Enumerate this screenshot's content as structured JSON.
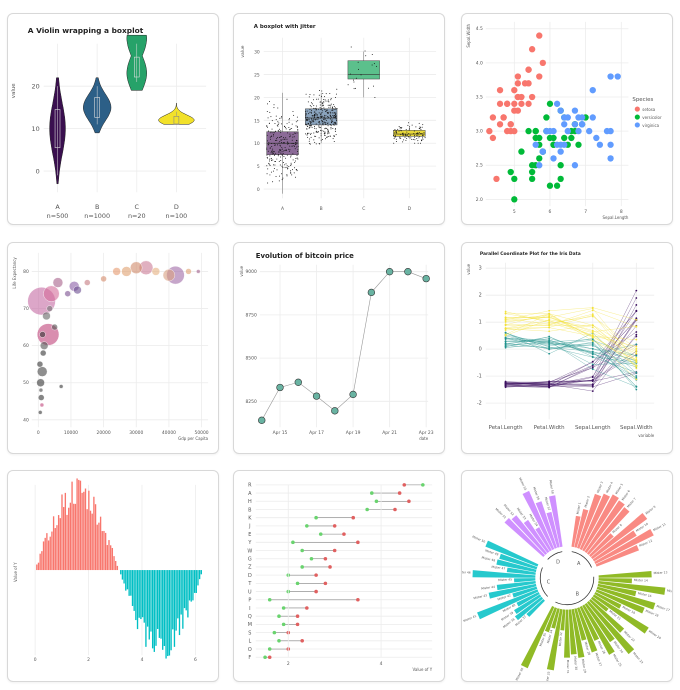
{
  "chart_data": [
    {
      "type": "violin",
      "title": "A Violin wrapping a boxplot",
      "ylabel": "value",
      "ylim": [
        -5,
        30
      ],
      "yticks": [
        0,
        10,
        20
      ],
      "categories": [
        "A",
        "B",
        "C",
        "D"
      ],
      "counts": [
        "n=500",
        "n=1000",
        "n=20",
        "n=100"
      ],
      "medians": [
        10,
        15,
        24.5,
        12
      ],
      "ranges": [
        [
          -3,
          22
        ],
        [
          9,
          22
        ],
        [
          19,
          32
        ],
        [
          11,
          16
        ]
      ],
      "colors": [
        "#3a0f4f",
        "#2c5f87",
        "#26a269",
        "#f2e12a"
      ]
    },
    {
      "type": "box",
      "title": "A boxplot with jitter",
      "ylabel": "value",
      "ylim": [
        -2,
        33
      ],
      "yticks": [
        0,
        5,
        10,
        15,
        20,
        25,
        30
      ],
      "categories": [
        "A",
        "B",
        "C",
        "D"
      ],
      "boxes": [
        {
          "q1": 7.5,
          "median": 10,
          "q3": 12.5,
          "lo": -1,
          "hi": 21
        },
        {
          "q1": 14,
          "median": 15.5,
          "q3": 17.5,
          "lo": 10,
          "hi": 21
        },
        {
          "q1": 24,
          "median": 25,
          "q3": 28,
          "lo": 20,
          "hi": 30
        },
        {
          "q1": 11.5,
          "median": 12,
          "q3": 12.8,
          "lo": 11,
          "hi": 13.5
        }
      ],
      "colors": [
        "#8b6a97",
        "#8aa3bd",
        "#5cc08c",
        "#e8d83a"
      ]
    },
    {
      "type": "scatter",
      "ylabel": "Sepal.Width",
      "xlabel": "Sepal.Length",
      "xlim": [
        4.2,
        8.2
      ],
      "ylim": [
        1.9,
        4.6
      ],
      "xticks": [
        5,
        6,
        7,
        8
      ],
      "yticks": [
        2.0,
        2.5,
        3.0,
        3.5,
        4.0,
        4.5
      ],
      "legend_title": "Species",
      "series": [
        {
          "name": "setosa",
          "color": "#f8766d",
          "x": [
            5.1,
            4.9,
            4.7,
            4.6,
            5.0,
            5.4,
            4.6,
            5.0,
            4.4,
            4.9,
            5.4,
            4.8,
            4.8,
            4.3,
            5.8,
            5.7,
            5.4,
            5.1,
            5.7,
            5.1,
            5.4,
            5.1,
            4.6,
            5.1,
            4.8,
            5.0,
            5.2,
            5.2,
            4.7,
            5.5,
            4.9,
            5.5,
            4.5,
            4.4,
            5.3,
            5.0
          ],
          "y": [
            3.5,
            3.0,
            3.2,
            3.1,
            3.6,
            3.9,
            3.4,
            3.4,
            2.9,
            3.1,
            3.7,
            3.4,
            3.0,
            3.0,
            4.0,
            4.4,
            3.9,
            3.5,
            3.8,
            3.8,
            3.4,
            3.7,
            3.6,
            3.3,
            3.4,
            3.0,
            3.5,
            3.4,
            3.2,
            4.2,
            3.1,
            3.5,
            2.3,
            3.2,
            3.7,
            3.3
          ]
        },
        {
          "name": "versicolor",
          "color": "#00ba38",
          "x": [
            7.0,
            6.4,
            6.9,
            5.5,
            6.5,
            5.7,
            6.3,
            4.9,
            6.6,
            5.2,
            5.0,
            5.9,
            6.0,
            6.1,
            5.6,
            6.7,
            5.6,
            5.8,
            6.2,
            5.6,
            5.9,
            6.1,
            6.3,
            6.1,
            6.4,
            6.6,
            6.8,
            6.7,
            6.0,
            5.7,
            5.5,
            5.8,
            5.4,
            6.0,
            6.7,
            6.3,
            5.6,
            5.5,
            5.0,
            5.7
          ],
          "y": [
            3.2,
            3.2,
            3.1,
            2.3,
            2.8,
            2.8,
            3.3,
            2.4,
            2.9,
            2.7,
            2.0,
            3.0,
            2.2,
            2.9,
            2.9,
            3.1,
            3.0,
            2.7,
            2.2,
            2.5,
            3.2,
            2.8,
            2.5,
            2.8,
            2.9,
            3.0,
            2.8,
            3.0,
            2.9,
            2.6,
            2.4,
            2.7,
            3.0,
            3.4,
            3.1,
            2.3,
            3.0,
            2.5,
            2.3,
            2.9
          ]
        },
        {
          "name": "virginica",
          "color": "#619cff",
          "x": [
            6.3,
            5.8,
            7.1,
            6.5,
            7.6,
            7.3,
            6.7,
            7.2,
            6.4,
            6.8,
            5.7,
            6.4,
            6.5,
            7.7,
            7.7,
            6.9,
            5.6,
            7.7,
            6.3,
            7.2,
            6.2,
            6.1,
            7.4,
            7.9,
            6.3,
            6.1,
            7.7,
            6.4,
            6.0,
            6.9,
            6.7,
            6.9,
            5.8,
            6.8,
            6.7,
            6.2,
            5.9
          ],
          "y": [
            3.3,
            2.7,
            3.0,
            3.0,
            3.0,
            2.9,
            2.5,
            3.6,
            3.2,
            3.0,
            2.5,
            2.8,
            3.2,
            3.8,
            2.6,
            3.2,
            2.8,
            2.8,
            2.7,
            3.2,
            2.8,
            3.0,
            2.8,
            3.8,
            2.8,
            2.6,
            3.0,
            3.1,
            3.0,
            3.1,
            3.1,
            3.1,
            2.7,
            3.2,
            3.3,
            3.4,
            3.0
          ]
        }
      ]
    },
    {
      "type": "bubble",
      "xlabel": "Gdp per Capita",
      "ylabel": "Life Expectancy",
      "xlim": [
        -2000,
        52000
      ],
      "ylim": [
        38,
        85
      ],
      "xticks": [
        0,
        10000,
        20000,
        30000,
        40000,
        50000
      ],
      "yticks": [
        40,
        50,
        60,
        70,
        80
      ],
      "points": [
        {
          "x": 1000,
          "y": 72,
          "r": 14,
          "c": "#c46aa3"
        },
        {
          "x": 3000,
          "y": 63,
          "r": 11,
          "c": "#c0437a"
        },
        {
          "x": 4000,
          "y": 74,
          "r": 8,
          "c": "#d46c9a"
        },
        {
          "x": 6000,
          "y": 77,
          "r": 5,
          "c": "#a7618a"
        },
        {
          "x": 9000,
          "y": 74,
          "r": 3,
          "c": "#7a4e8f"
        },
        {
          "x": 11000,
          "y": 76,
          "r": 5,
          "c": "#8b5ea6"
        },
        {
          "x": 12000,
          "y": 75,
          "r": 4,
          "c": "#6a4d8f"
        },
        {
          "x": 15000,
          "y": 77,
          "r": 3,
          "c": "#c47a80"
        },
        {
          "x": 20000,
          "y": 78,
          "r": 3,
          "c": "#d48a6b"
        },
        {
          "x": 24000,
          "y": 80,
          "r": 4,
          "c": "#e69a6e"
        },
        {
          "x": 27000,
          "y": 80,
          "r": 5,
          "c": "#e0a070"
        },
        {
          "x": 30000,
          "y": 81,
          "r": 6,
          "c": "#d08a6a"
        },
        {
          "x": 33000,
          "y": 81,
          "r": 7,
          "c": "#cc7c96"
        },
        {
          "x": 36000,
          "y": 80,
          "r": 4,
          "c": "#e6b080"
        },
        {
          "x": 40000,
          "y": 79,
          "r": 6,
          "c": "#d8a080"
        },
        {
          "x": 42000,
          "y": 79,
          "r": 9,
          "c": "#a06aa6"
        },
        {
          "x": 46000,
          "y": 80,
          "r": 3,
          "c": "#e0a070"
        },
        {
          "x": 49000,
          "y": 80,
          "r": 2,
          "c": "#a05f8a"
        },
        {
          "x": 500,
          "y": 55,
          "r": 3,
          "c": "#333333"
        },
        {
          "x": 700,
          "y": 50,
          "r": 4,
          "c": "#333333"
        },
        {
          "x": 900,
          "y": 46,
          "r": 3,
          "c": "#333333"
        },
        {
          "x": 1200,
          "y": 53,
          "r": 5,
          "c": "#444444"
        },
        {
          "x": 1500,
          "y": 58,
          "r": 3,
          "c": "#333333"
        },
        {
          "x": 1800,
          "y": 60,
          "r": 4,
          "c": "#555555"
        },
        {
          "x": 600,
          "y": 42,
          "r": 2,
          "c": "#333333"
        },
        {
          "x": 800,
          "y": 48,
          "r": 2,
          "c": "#444444"
        },
        {
          "x": 2500,
          "y": 68,
          "r": 4,
          "c": "#666666"
        },
        {
          "x": 3500,
          "y": 70,
          "r": 3,
          "c": "#777777"
        },
        {
          "x": 5000,
          "y": 65,
          "r": 3,
          "c": "#555555"
        },
        {
          "x": 7000,
          "y": 49,
          "r": 2,
          "c": "#333333"
        },
        {
          "x": 1100,
          "y": 44,
          "r": 2,
          "c": "#c0437a"
        },
        {
          "x": 1300,
          "y": 63,
          "r": 3,
          "c": "#333333"
        }
      ]
    },
    {
      "type": "line",
      "title": "Evolution of bitcoin price",
      "ylabel": "value",
      "xlabel": "date",
      "x": [
        "Apr 14",
        "Apr 15",
        "Apr 16",
        "Apr 17",
        "Apr 18",
        "Apr 19",
        "Apr 20",
        "Apr 21",
        "Apr 22",
        "Apr 23"
      ],
      "xticks": [
        "Apr 15",
        "Apr 17",
        "Apr 19",
        "Apr 21",
        "Apr 23"
      ],
      "y": [
        8140,
        8330,
        8360,
        8280,
        8195,
        8290,
        8880,
        9000,
        9000,
        8960
      ],
      "ylim": [
        8100,
        9040
      ],
      "yticks": [
        8250,
        8500,
        8750,
        9000
      ],
      "color": "#69b3a2"
    },
    {
      "type": "parallel",
      "title": "Parallel Coordinate Plot for the Iris Data",
      "ylabel": "value",
      "xlabel": "variable",
      "categories": [
        "Petal.Length",
        "Petal.Width",
        "Sepal.Length",
        "Sepal.Width"
      ],
      "ylim": [
        -2.6,
        3.2
      ],
      "yticks": [
        -2,
        -1,
        0,
        1,
        2,
        3
      ],
      "groups": [
        {
          "color": "#3b0f5f",
          "count": 20,
          "means": [
            -1.3,
            -1.3,
            -1.0,
            0.9
          ],
          "spread": [
            0.1,
            0.1,
            0.4,
            1.0
          ]
        },
        {
          "color": "#21918c",
          "count": 20,
          "means": [
            0.3,
            0.2,
            0.1,
            -0.7
          ],
          "spread": [
            0.25,
            0.25,
            0.5,
            0.7
          ]
        },
        {
          "color": "#f2e13a",
          "count": 20,
          "means": [
            1.0,
            1.1,
            0.9,
            -0.2
          ],
          "spread": [
            0.3,
            0.3,
            0.6,
            0.8
          ]
        }
      ]
    },
    {
      "type": "bar",
      "ylabel": "Value of Y",
      "xlim": [
        -0.2,
        6.4
      ],
      "ylim": [
        -1.1,
        1.1
      ],
      "xticks": [
        0,
        2,
        4,
        6
      ],
      "pos_color": "#f8766d",
      "neg_color": "#00bfc4",
      "n": 100
    },
    {
      "type": "dumbbell",
      "xlabel": "Value of Y",
      "categories": [
        "R",
        "A",
        "H",
        "B",
        "K",
        "J",
        "E",
        "Y",
        "W",
        "G",
        "Z",
        "D",
        "T",
        "U",
        "P",
        "I",
        "Q",
        "M",
        "S",
        "L",
        "O",
        "F"
      ],
      "xticks": [
        2,
        4
      ],
      "xlim": [
        1.3,
        5.1
      ],
      "start": [
        4.9,
        3.8,
        3.9,
        3.7,
        2.6,
        2.4,
        2.7,
        2.1,
        2.3,
        2.5,
        2.3,
        2.0,
        2.2,
        2.0,
        1.6,
        1.9,
        1.8,
        1.9,
        1.7,
        1.8,
        1.6,
        1.5
      ],
      "end": [
        4.5,
        4.4,
        4.6,
        4.3,
        3.4,
        3.0,
        3.2,
        3.5,
        3.0,
        2.8,
        2.9,
        2.6,
        2.8,
        2.6,
        3.5,
        2.4,
        2.2,
        2.2,
        2.0,
        2.3,
        2.0,
        1.6
      ],
      "start_color": "#69d36e",
      "end_color": "#e06060"
    },
    {
      "type": "circular_bar",
      "groups": [
        {
          "name": "A",
          "color": "#f8766d",
          "count": 12
        },
        {
          "name": "B",
          "color": "#7cae00",
          "count": 24
        },
        {
          "name": "C",
          "color": "#00bfc4",
          "count": 14
        },
        {
          "name": "D",
          "color": "#c77cff",
          "count": 8
        }
      ],
      "label_prefix": "Mister"
    }
  ]
}
